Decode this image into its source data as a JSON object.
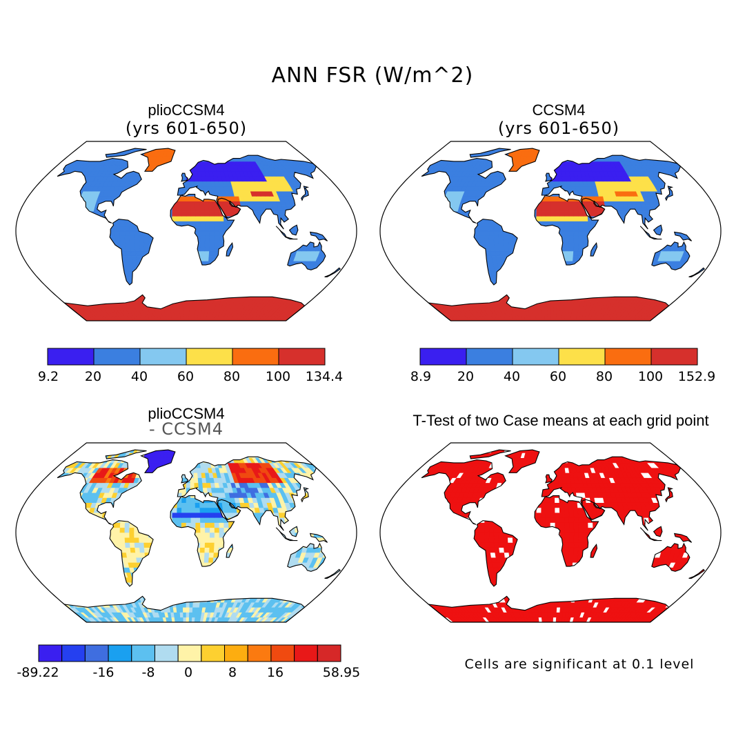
{
  "figure_title": "ANN FSR (W/m^2)",
  "panels": [
    {
      "title": "plioCCSM4",
      "subtitle": "(yrs 601-650)",
      "colorbar_labels": [
        "9.2",
        "20",
        "40",
        "60",
        "80",
        "100",
        "134.4"
      ]
    },
    {
      "title": "CCSM4",
      "subtitle": "(yrs 601-650)",
      "colorbar_labels": [
        "8.9",
        "20",
        "40",
        "60",
        "80",
        "100",
        "152.9"
      ]
    },
    {
      "title": "plioCCSM4",
      "subtitle": "- CCSM4",
      "colorbar_labels": [
        "-89.22",
        "-16",
        "-8",
        "0",
        "8",
        "16",
        "58.95"
      ]
    },
    {
      "title": "T-Test of two Case means at each grid point",
      "footnote": "Cells are significant at 0.1 level"
    }
  ],
  "colors": {
    "abs_scale": [
      "#3a1ff0",
      "#3b7fe0",
      "#84c8f0",
      "#fde049",
      "#fa6d10",
      "#d6302c"
    ],
    "diff_scale": [
      "#3a1ff0",
      "#2540f0",
      "#3f6ee0",
      "#1aa0f0",
      "#5cc0f0",
      "#b0dcf0",
      "#fff3a8",
      "#fdd030",
      "#fdad10",
      "#fb7a10",
      "#f04a10",
      "#e81818",
      "#d62828"
    ],
    "significance": "#ee1111"
  }
}
